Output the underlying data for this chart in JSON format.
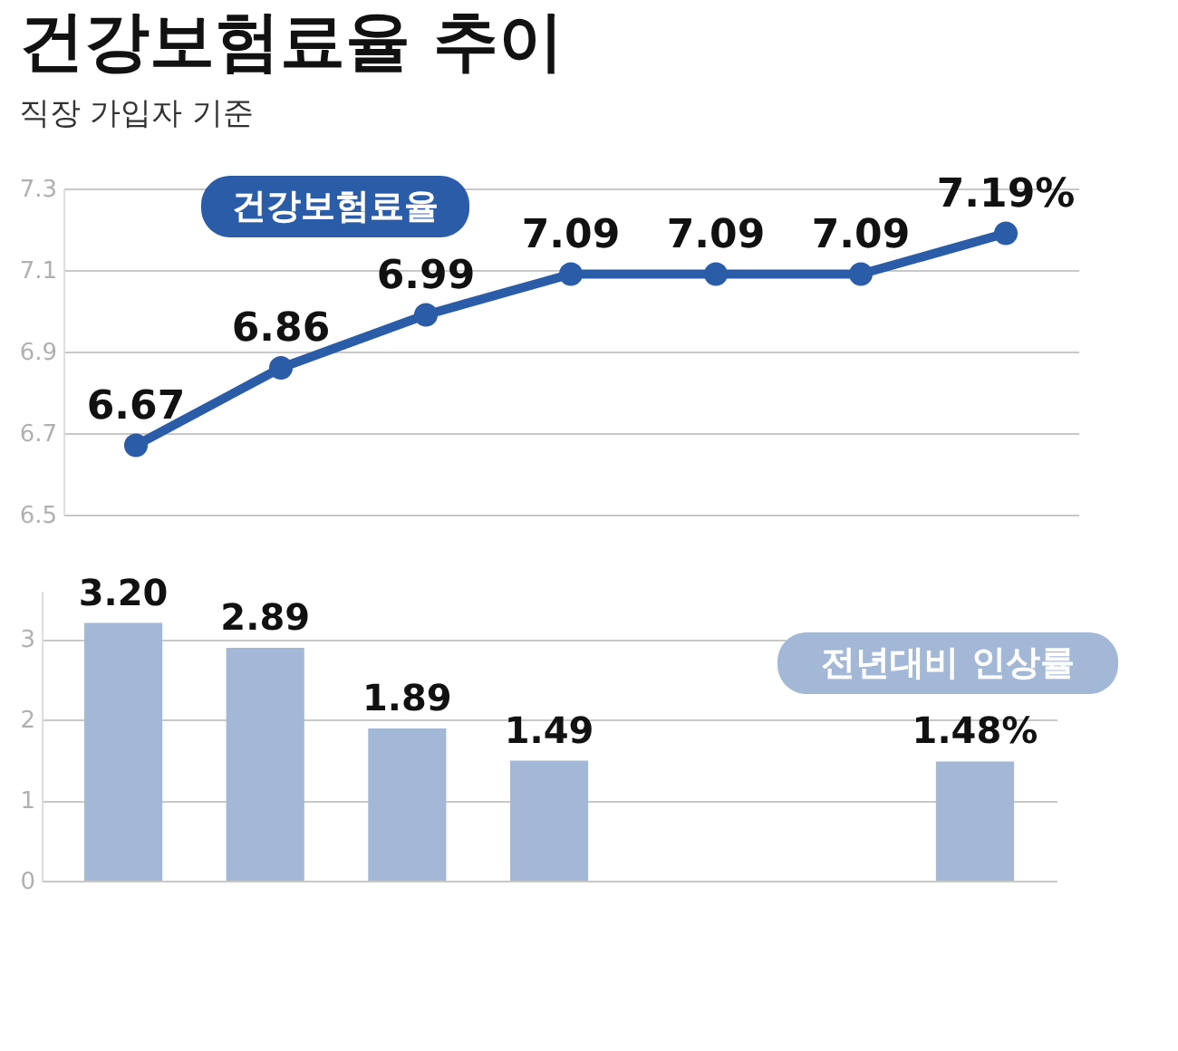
{
  "chart_data": [
    {
      "type": "line",
      "title": "건강보험료율 추이",
      "subtitle": "직장 가입자 기준",
      "categories": [
        null,
        null,
        null,
        null,
        null,
        null,
        null
      ],
      "series": [
        {
          "name": "건강보험료율",
          "color": "#2b5ca8",
          "values": [
            6.67,
            6.86,
            6.99,
            7.09,
            7.09,
            7.09,
            7.19
          ],
          "value_labels": [
            "6.67",
            "6.86",
            "6.99",
            "7.09",
            "7.09",
            "7.09",
            "7.19%"
          ]
        }
      ],
      "ylim": [
        6.5,
        7.3
      ],
      "yticks": [
        6.5,
        6.7,
        6.9,
        7.1,
        7.3
      ],
      "grid": "y",
      "tick_labels": "y",
      "marker": "circle",
      "line_style": "solid"
    },
    {
      "type": "bar",
      "categories": [
        null,
        null,
        null,
        null,
        null,
        null,
        null
      ],
      "series": [
        {
          "name": "전년대비 인상률",
          "color": "#a3b7d6",
          "values": [
            3.2,
            2.89,
            1.89,
            1.49,
            null,
            null,
            1.48
          ],
          "value_labels": [
            "3.20",
            "2.89",
            "1.89",
            "1.49",
            null,
            null,
            "1.48%"
          ]
        }
      ],
      "ylim": [
        0,
        3.6
      ],
      "yticks": [
        0,
        1,
        2,
        3
      ],
      "grid": "y",
      "tick_labels": "y"
    }
  ]
}
